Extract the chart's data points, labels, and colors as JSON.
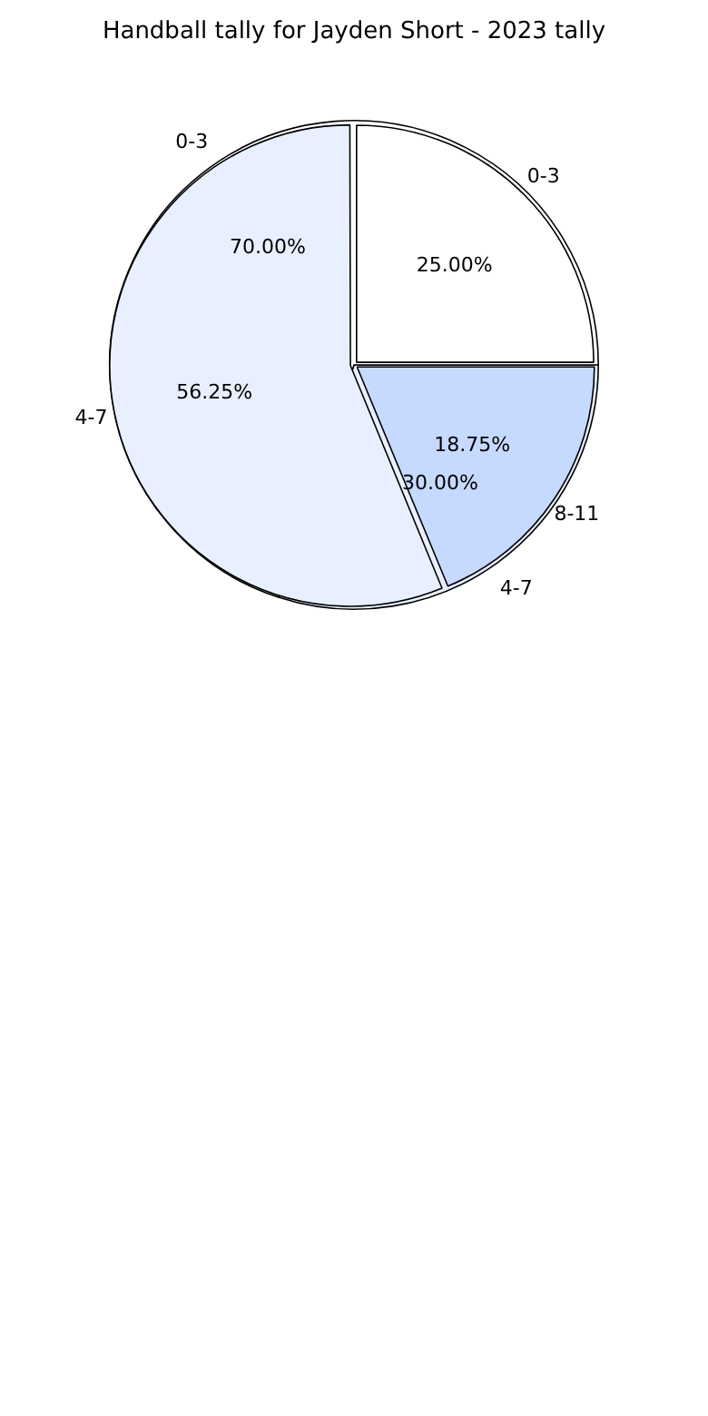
{
  "chart_data": [
    {
      "type": "pie",
      "title": "Handball tally for Jayden Short - 2023 tally",
      "categories": [
        "0-3",
        "4-7"
      ],
      "values": [
        70,
        30
      ],
      "colors": [
        "#ffffff",
        "#e8f0ff"
      ],
      "value_labels": [
        "70.00%",
        "30.00%"
      ],
      "legend": false
    },
    {
      "type": "pie",
      "categories": [
        "0-3",
        "4-7",
        "8-11"
      ],
      "values": [
        25,
        56.25,
        18.75
      ],
      "colors": [
        "#ffffff",
        "#e8f0ff",
        "#c6d9ff"
      ],
      "value_labels": [
        "25.00%",
        "56.25%",
        "18.75%"
      ],
      "legend": false
    }
  ]
}
